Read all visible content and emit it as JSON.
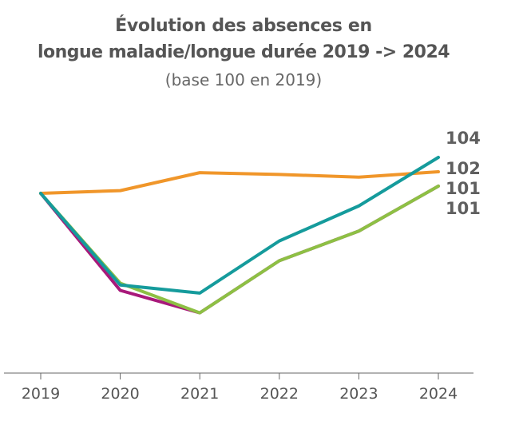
{
  "chart_data": {
    "type": "line",
    "title": "Évolution des absences en longue maladie/longue durée 2019 -> 2024",
    "title_lines": [
      "Évolution des absences en",
      "longue maladie/longue durée 2019 -> 2024"
    ],
    "subtitle": "(base 100 en 2019)",
    "xlabel": "",
    "ylabel": "",
    "x": [
      "2019",
      "2020",
      "2021",
      "2022",
      "2023",
      "2024"
    ],
    "ylim": [
      80,
      110
    ],
    "grid": false,
    "legend": "none",
    "series": [
      {
        "color": "#f0962a",
        "values": [
          100,
          100.3,
          102.3,
          102.1,
          101.8,
          102.4
        ],
        "end_label": "102"
      },
      {
        "color": "#a8197a",
        "values": [
          100,
          89.2,
          86.7,
          92.5,
          95.8,
          100.8
        ],
        "end_label": "101"
      },
      {
        "color": "#8dc044",
        "values": [
          100,
          90.0,
          86.7,
          92.5,
          95.8,
          100.8
        ],
        "end_label": "101"
      },
      {
        "color": "#159b9c",
        "values": [
          100,
          89.8,
          88.9,
          94.7,
          98.6,
          104
        ],
        "end_label": "104"
      }
    ],
    "end_labels": [
      "104",
      "102",
      "101",
      "101"
    ]
  }
}
